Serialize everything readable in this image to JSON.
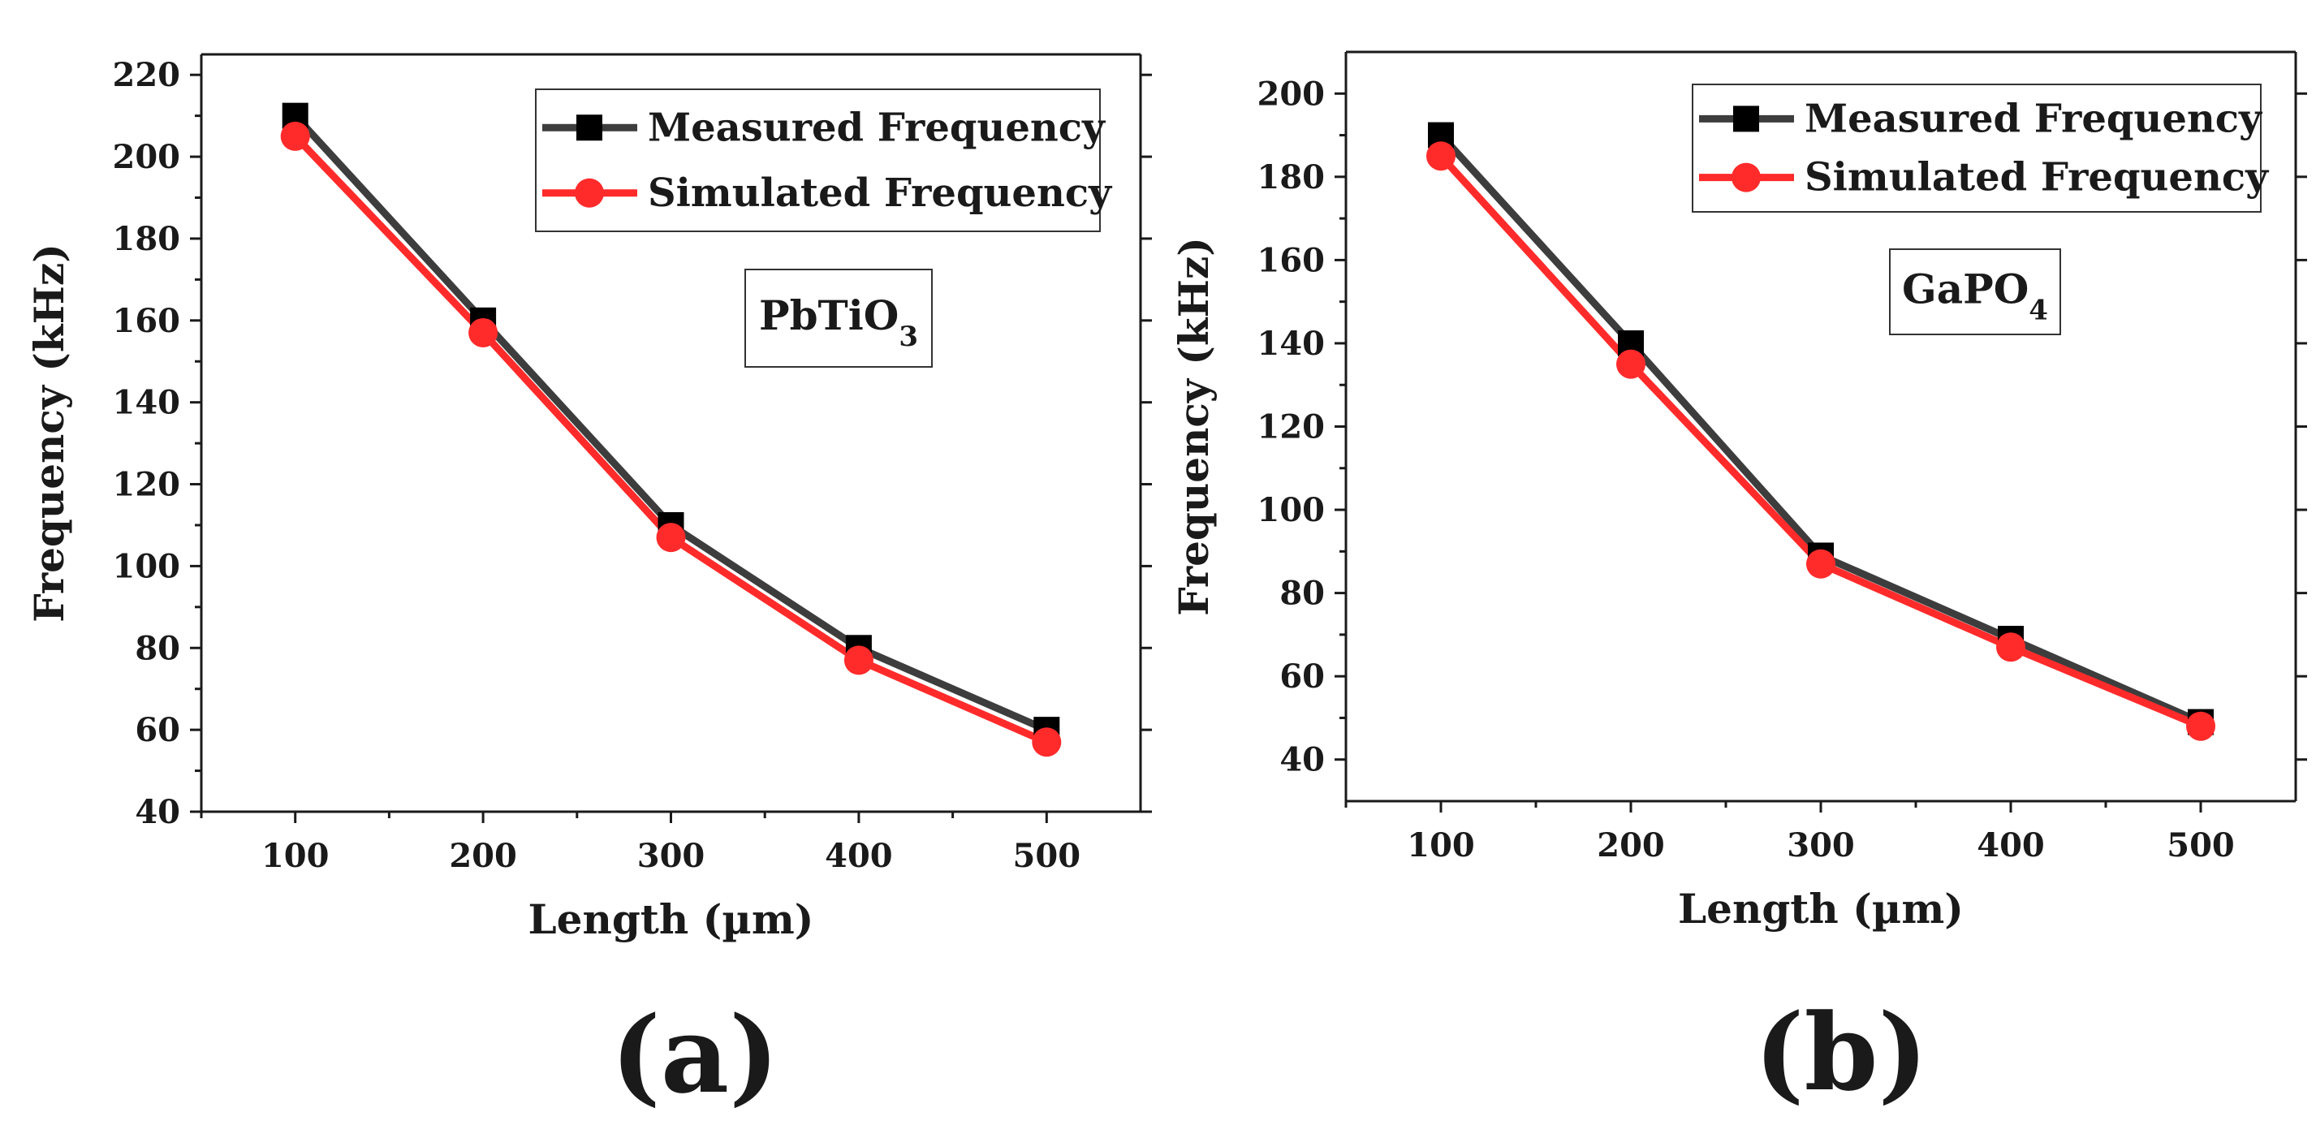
{
  "chart_data": [
    {
      "type": "line",
      "panel_label": "(a)",
      "annotation": {
        "base": "PbTiO",
        "subscript": "3"
      },
      "xlabel": "Length (µm)",
      "ylabel": "Frequency (kHz)",
      "xlim": [
        50,
        550
      ],
      "ylim": [
        40,
        225
      ],
      "x_ticks": [
        100,
        200,
        300,
        400,
        500
      ],
      "x_tick_labels": [
        "100",
        "200",
        "300",
        "400",
        "500"
      ],
      "y_ticks": [
        40,
        60,
        80,
        100,
        120,
        140,
        160,
        180,
        200,
        220
      ],
      "y_tick_labels": [
        "40",
        "60",
        "80",
        "100",
        "120",
        "140",
        "160",
        "180",
        "200",
        "220"
      ],
      "legend_position": "top-right",
      "x": [
        100,
        200,
        300,
        400,
        500
      ],
      "series": [
        {
          "name": "Measured Frequency",
          "values": [
            210,
            160,
            110,
            80,
            60
          ],
          "color": "#3d3d3d",
          "marker": "square"
        },
        {
          "name": "Simulated Frequency",
          "values": [
            205,
            157,
            107,
            77,
            57
          ],
          "color": "#ff2b2b",
          "marker": "circle"
        }
      ]
    },
    {
      "type": "line",
      "panel_label": "(b)",
      "annotation": {
        "base": "GaPO",
        "subscript": "4"
      },
      "xlabel": "Length (µm)",
      "ylabel": "Frequency (kHz)",
      "xlim": [
        50,
        550
      ],
      "ylim": [
        30,
        210
      ],
      "x_ticks": [
        100,
        200,
        300,
        400,
        500
      ],
      "x_tick_labels": [
        "100",
        "200",
        "300",
        "400",
        "500"
      ],
      "y_ticks": [
        40,
        60,
        80,
        100,
        120,
        140,
        160,
        180,
        200
      ],
      "y_tick_labels": [
        "40",
        "60",
        "80",
        "100",
        "120",
        "140",
        "160",
        "180",
        "200"
      ],
      "legend_position": "top-right",
      "x": [
        100,
        200,
        300,
        400,
        500
      ],
      "series": [
        {
          "name": "Measured Frequency",
          "values": [
            190,
            140,
            89,
            69,
            49
          ],
          "color": "#3d3d3d",
          "marker": "square"
        },
        {
          "name": "Simulated Frequency",
          "values": [
            185,
            135,
            87,
            67,
            48
          ],
          "color": "#ff2b2b",
          "marker": "circle"
        }
      ]
    }
  ]
}
